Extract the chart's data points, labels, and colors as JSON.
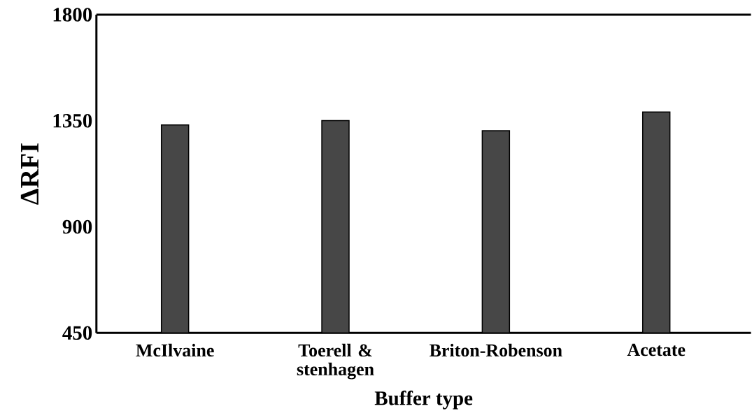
{
  "chart_data": {
    "type": "bar",
    "xlabel": "Buffer type",
    "ylabel": "ΔRFI",
    "categories": [
      "McIlvaine",
      "Toerell & stenhagen",
      "Briton-Robenson",
      "Acetate"
    ],
    "values": [
      1332,
      1351,
      1308,
      1387
    ],
    "color": "#474747",
    "ylim": [
      450,
      1800
    ],
    "yticks": [
      450,
      900,
      1350,
      1800
    ]
  }
}
